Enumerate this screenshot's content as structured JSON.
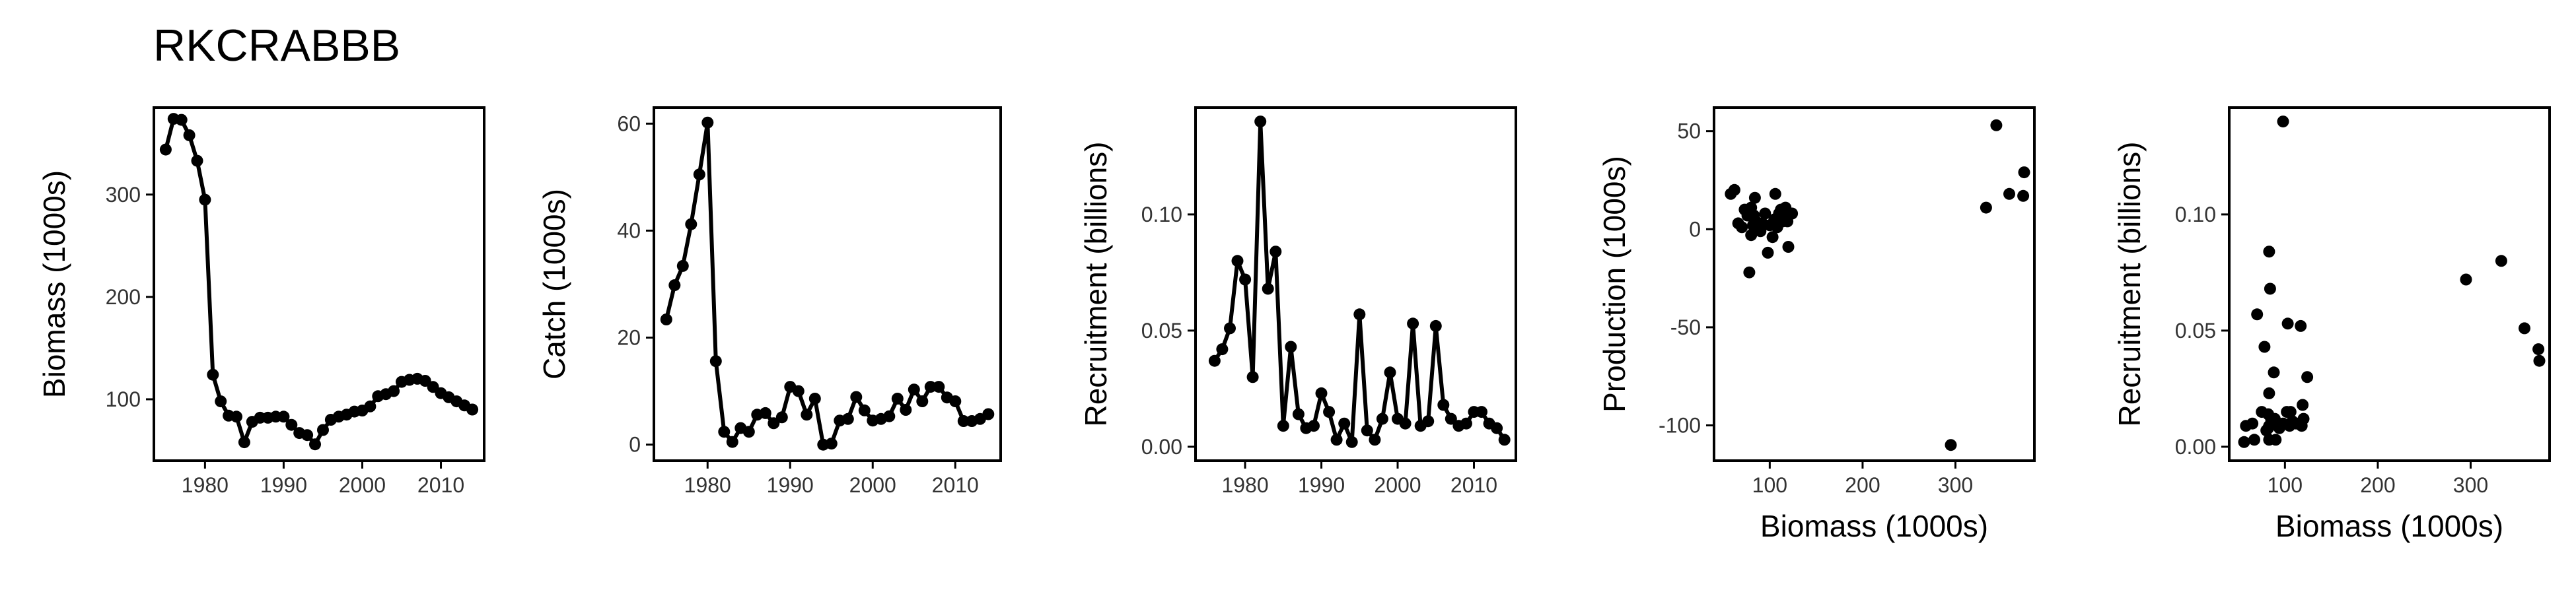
{
  "page": {
    "title": "RKCRABBB"
  },
  "colors": {
    "ink": "#000000",
    "background": "#ffffff"
  },
  "chart_data": [
    {
      "id": "biomass",
      "type": "line",
      "xlabel": "",
      "ylabel": "Biomass (1000s)",
      "x_ticks": [
        1980,
        1990,
        2000,
        2010
      ],
      "y_ticks": [
        100,
        200,
        300
      ],
      "xlim": [
        1973.5,
        2015.5
      ],
      "ylim": [
        40,
        385
      ],
      "x": [
        1975,
        1976,
        1977,
        1978,
        1979,
        1980,
        1981,
        1982,
        1983,
        1984,
        1985,
        1986,
        1987,
        1988,
        1989,
        1990,
        1991,
        1992,
        1993,
        1994,
        1995,
        1996,
        1997,
        1998,
        1999,
        2000,
        2001,
        2002,
        2003,
        2004,
        2005,
        2006,
        2007,
        2008,
        2009,
        2010,
        2011,
        2012,
        2013,
        2014
      ],
      "y": [
        344,
        374,
        373,
        358,
        333,
        295,
        124,
        98,
        84,
        83,
        58,
        78,
        82,
        82,
        83,
        83,
        75,
        67,
        65,
        56,
        70,
        80,
        83,
        85,
        88,
        89,
        93,
        103,
        105,
        108,
        117,
        119,
        120,
        118,
        112,
        106,
        102,
        98,
        94,
        90
      ]
    },
    {
      "id": "catch",
      "type": "line",
      "xlabel": "",
      "ylabel": "Catch (1000s)",
      "x_ticks": [
        1980,
        1990,
        2000,
        2010
      ],
      "y_ticks": [
        0,
        20,
        40,
        60
      ],
      "xlim": [
        1973.5,
        2015.5
      ],
      "ylim": [
        -3,
        63
      ],
      "x": [
        1975,
        1976,
        1977,
        1978,
        1979,
        1980,
        1981,
        1982,
        1983,
        1984,
        1985,
        1986,
        1987,
        1988,
        1989,
        1990,
        1991,
        1992,
        1993,
        1994,
        1995,
        1996,
        1997,
        1998,
        1999,
        2000,
        2001,
        2002,
        2003,
        2004,
        2005,
        2006,
        2007,
        2008,
        2009,
        2010,
        2011,
        2012,
        2013,
        2014
      ],
      "y": [
        23.4,
        29.8,
        33.4,
        41.2,
        50.5,
        60.2,
        15.6,
        2.4,
        0.5,
        3.1,
        2.4,
        5.6,
        5.9,
        4.0,
        5.1,
        10.8,
        10.0,
        5.6,
        8.6,
        0.0,
        0.2,
        4.5,
        4.8,
        8.9,
        6.4,
        4.5,
        4.8,
        5.3,
        8.6,
        6.5,
        10.3,
        8.1,
        10.8,
        10.8,
        8.8,
        8.1,
        4.4,
        4.4,
        4.8,
        5.7
      ]
    },
    {
      "id": "recruitment",
      "type": "line",
      "xlabel": "",
      "ylabel": "Recruitment (billions)",
      "x_ticks": [
        1980,
        1990,
        2000,
        2010
      ],
      "x_tick_labels": [
        "1980",
        "1990",
        "2000",
        "2010"
      ],
      "y_ticks": [
        0.0,
        0.05,
        0.1
      ],
      "y_tick_labels": [
        "0.00",
        "0.05",
        "0.10"
      ],
      "xlim": [
        1973.5,
        2015.5
      ],
      "ylim": [
        -0.006,
        0.146
      ],
      "x": [
        1976,
        1977,
        1978,
        1979,
        1980,
        1981,
        1982,
        1983,
        1984,
        1985,
        1986,
        1987,
        1988,
        1989,
        1990,
        1991,
        1992,
        1993,
        1994,
        1995,
        1996,
        1997,
        1998,
        1999,
        2000,
        2001,
        2002,
        2003,
        2004,
        2005,
        2006,
        2007,
        2008,
        2009,
        2010,
        2011,
        2012,
        2013,
        2014
      ],
      "y": [
        0.037,
        0.042,
        0.051,
        0.08,
        0.072,
        0.03,
        0.14,
        0.068,
        0.084,
        0.009,
        0.043,
        0.014,
        0.008,
        0.009,
        0.023,
        0.015,
        0.003,
        0.01,
        0.002,
        0.057,
        0.007,
        0.003,
        0.012,
        0.032,
        0.012,
        0.01,
        0.053,
        0.009,
        0.011,
        0.052,
        0.018,
        0.012,
        0.009,
        0.01,
        0.015,
        0.015,
        0.01,
        0.008,
        0.003
      ]
    },
    {
      "id": "production",
      "type": "scatter",
      "xlabel": "Biomass (1000s)",
      "ylabel": "Production (1000s)",
      "x_ticks": [
        100,
        200,
        300
      ],
      "y_ticks": [
        -100,
        -50,
        0,
        50
      ],
      "xlim": [
        40,
        385
      ],
      "ylim": [
        -118,
        62
      ],
      "x": [
        58,
        62,
        66,
        70,
        73,
        76,
        78,
        80,
        82,
        83,
        84,
        85,
        86,
        88,
        90,
        92,
        95,
        98,
        100,
        103,
        105,
        106,
        108,
        110,
        112,
        114,
        116,
        117,
        118,
        119,
        120,
        124,
        80,
        295,
        333,
        344,
        358,
        373,
        374
      ],
      "y": [
        18,
        20,
        3,
        1,
        10,
        7,
        -22,
        11,
        2,
        7,
        16,
        4,
        0,
        1,
        -1,
        3,
        8,
        -12,
        2,
        -4,
        5,
        18,
        1,
        8,
        10,
        4,
        6,
        11,
        7,
        4,
        -9,
        8,
        -3,
        -110,
        11,
        53,
        18,
        17,
        29
      ]
    },
    {
      "id": "stock-recruitment",
      "type": "scatter",
      "xlabel": "Biomass (1000s)",
      "ylabel": "Recruitment (billions)",
      "x_ticks": [
        100,
        200,
        300
      ],
      "y_ticks": [
        0.0,
        0.05,
        0.1
      ],
      "y_tick_labels": [
        "0.00",
        "0.05",
        "0.10"
      ],
      "xlim": [
        40,
        385
      ],
      "ylim": [
        -0.006,
        0.146
      ],
      "x": [
        374,
        373,
        358,
        333,
        295,
        124,
        98,
        84,
        83,
        58,
        78,
        82,
        82,
        83,
        83,
        75,
        67,
        65,
        56,
        70,
        80,
        83,
        85,
        88,
        89,
        93,
        103,
        105,
        108,
        117,
        119,
        120,
        118,
        112,
        106,
        102,
        98,
        94,
        90
      ],
      "y": [
        0.037,
        0.042,
        0.051,
        0.08,
        0.072,
        0.03,
        0.14,
        0.068,
        0.084,
        0.009,
        0.043,
        0.014,
        0.008,
        0.009,
        0.023,
        0.015,
        0.003,
        0.01,
        0.002,
        0.057,
        0.007,
        0.003,
        0.012,
        0.032,
        0.012,
        0.01,
        0.053,
        0.009,
        0.011,
        0.052,
        0.018,
        0.012,
        0.009,
        0.01,
        0.015,
        0.015,
        0.01,
        0.008,
        0.003
      ]
    }
  ]
}
